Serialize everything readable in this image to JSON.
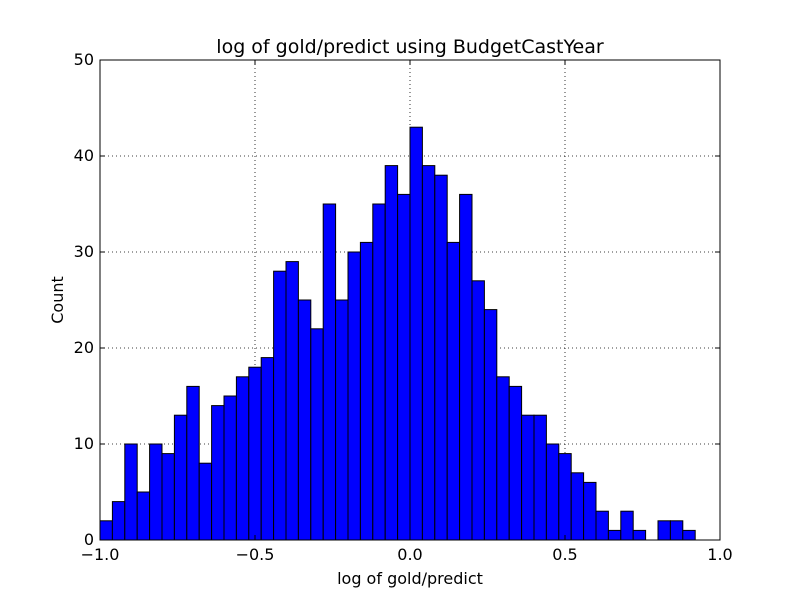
{
  "chart_data": {
    "type": "bar",
    "title": "log of gold/predict using BudgetCastYear",
    "xlabel": "log of gold/predict",
    "ylabel": "Count",
    "xlim": [
      -1.0,
      1.0
    ],
    "ylim": [
      0,
      50
    ],
    "x_ticks": [
      "−1.0",
      "−0.5",
      "0.0",
      "0.5",
      "1.0"
    ],
    "x_tick_values": [
      -1.0,
      -0.5,
      0.0,
      0.5,
      1.0
    ],
    "y_ticks": [
      "0",
      "10",
      "20",
      "30",
      "40",
      "50"
    ],
    "y_tick_values": [
      0,
      10,
      20,
      30,
      40,
      50
    ],
    "grid": true,
    "bar_color": "#0000ff",
    "bins": {
      "start": -1.0,
      "width": 0.04,
      "counts": [
        2,
        4,
        10,
        5,
        10,
        9,
        13,
        16,
        8,
        14,
        15,
        17,
        18,
        19,
        28,
        29,
        25,
        22,
        35,
        25,
        30,
        31,
        35,
        39,
        36,
        43,
        39,
        38,
        31,
        36,
        27,
        24,
        17,
        16,
        13,
        13,
        10,
        9,
        7,
        6,
        3,
        1,
        3,
        1,
        0,
        2,
        2,
        1
      ]
    }
  }
}
